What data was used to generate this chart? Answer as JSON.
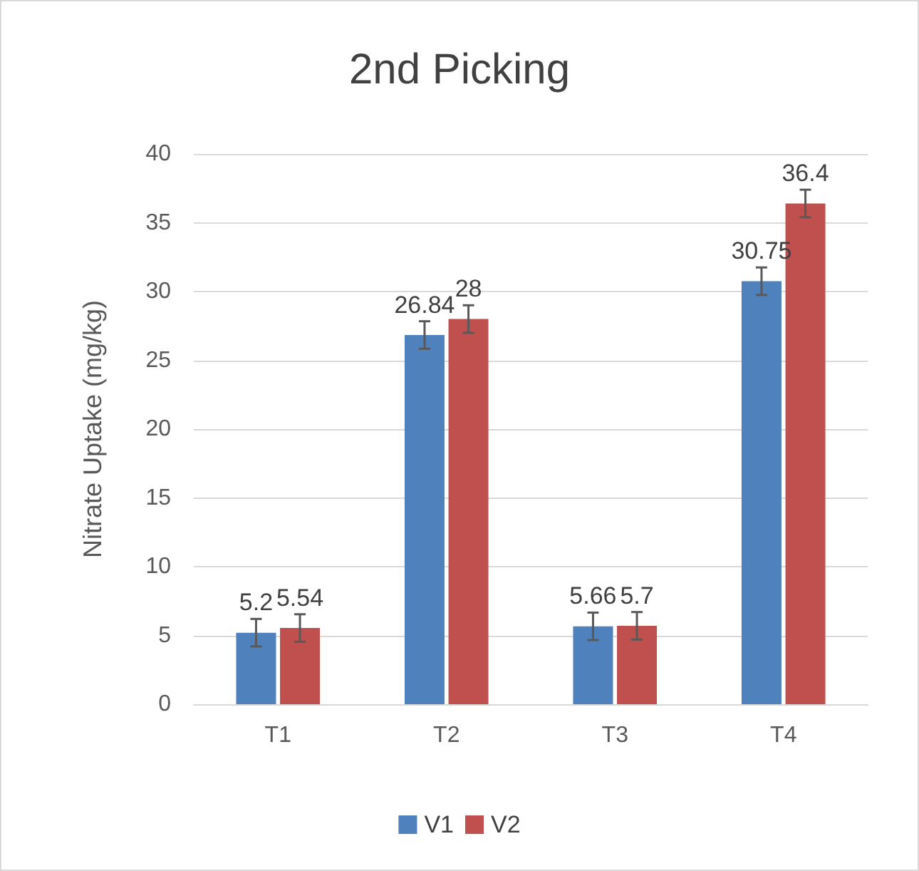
{
  "chart_data": {
    "type": "bar",
    "title": "2nd Picking",
    "ylabel": "Nitrate Uptake (mg/kg)",
    "categories": [
      "T1",
      "T2",
      "T3",
      "T4"
    ],
    "series": [
      {
        "name": "V1",
        "color": "#4f81bd",
        "values": [
          5.2,
          26.84,
          5.66,
          30.75
        ],
        "errors": [
          1,
          1,
          1,
          1
        ]
      },
      {
        "name": "V2",
        "color": "#c0504d",
        "values": [
          5.54,
          28,
          5.7,
          36.4
        ],
        "errors": [
          1,
          1,
          1,
          1
        ]
      }
    ],
    "ylim": [
      0,
      40
    ],
    "yticks": [
      0,
      5,
      10,
      15,
      20,
      25,
      30,
      35,
      40
    ],
    "grid": "y",
    "legend": "bottom",
    "data_labels": true
  }
}
